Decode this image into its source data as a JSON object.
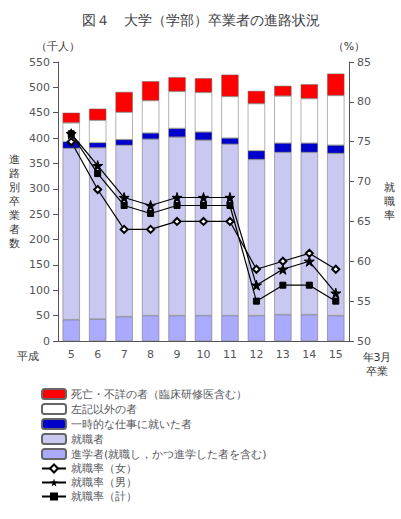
{
  "chart_data": {
    "type": "bar",
    "title": "図４　大学（学部）卒業者の進路状況",
    "categories": [
      "5",
      "6",
      "7",
      "8",
      "9",
      "10",
      "11",
      "12",
      "13",
      "14",
      "15"
    ],
    "stacked": true,
    "ylabel": "（千人）",
    "y2label": "（%）",
    "annotations": [
      "進\n路\n別\n卒\n業\n者\n数",
      "就\n職\n率",
      "平成",
      "年3月\n卒業"
    ],
    "ylim": [
      0,
      550
    ],
    "yticks": [
      0,
      50,
      100,
      150,
      200,
      250,
      300,
      350,
      400,
      450,
      500,
      550
    ],
    "y2lim": [
      50,
      85
    ],
    "y2ticks": [
      50,
      55,
      60,
      65,
      70,
      75,
      80,
      85
    ],
    "grid": false,
    "legend": "bottom",
    "series": [
      {
        "name": "進学者(就職し，かつ進学した者を含む)",
        "type": "bar",
        "color": "#aaaaff",
        "values": [
          42,
          43,
          48,
          50,
          50,
          50,
          50,
          50,
          52,
          52,
          50
        ]
      },
      {
        "name": "就職者",
        "type": "bar",
        "color": "#c8c8f0",
        "values": [
          338,
          338,
          338,
          348,
          352,
          346,
          338,
          308,
          320,
          320,
          320
        ]
      },
      {
        "name": "一時的な仕事に就いた者",
        "type": "bar",
        "color": "#0000cc",
        "values": [
          13,
          10,
          11,
          12,
          17,
          16,
          12,
          17,
          18,
          18,
          16
        ]
      },
      {
        "name": "左記以外の者",
        "type": "bar",
        "color": "#ffffff",
        "values": [
          37,
          44,
          54,
          64,
          73,
          78,
          82,
          93,
          93,
          88,
          98
        ]
      },
      {
        "name": "死亡・不詳の者（臨床研修医含む）",
        "type": "bar",
        "color": "#ff0000",
        "values": [
          20,
          23,
          40,
          38,
          28,
          28,
          43,
          25,
          20,
          28,
          43
        ]
      },
      {
        "name": "就職率（女）",
        "type": "line",
        "axis": "y2",
        "color": "#000000",
        "marker": "diamond",
        "values": [
          75,
          69,
          64,
          64,
          65,
          65,
          65,
          59,
          60,
          61,
          59
        ]
      },
      {
        "name": "就職率（男）",
        "type": "line",
        "axis": "y2",
        "color": "#000000",
        "marker": "star",
        "values": [
          76,
          72,
          68,
          67,
          68,
          68,
          68,
          57,
          59,
          60,
          56
        ]
      },
      {
        "name": "就職率（計）",
        "type": "line",
        "axis": "y2",
        "color": "#000000",
        "marker": "square",
        "values": [
          76,
          71,
          67,
          66,
          67,
          67,
          67,
          55,
          57,
          57,
          55
        ]
      }
    ]
  }
}
